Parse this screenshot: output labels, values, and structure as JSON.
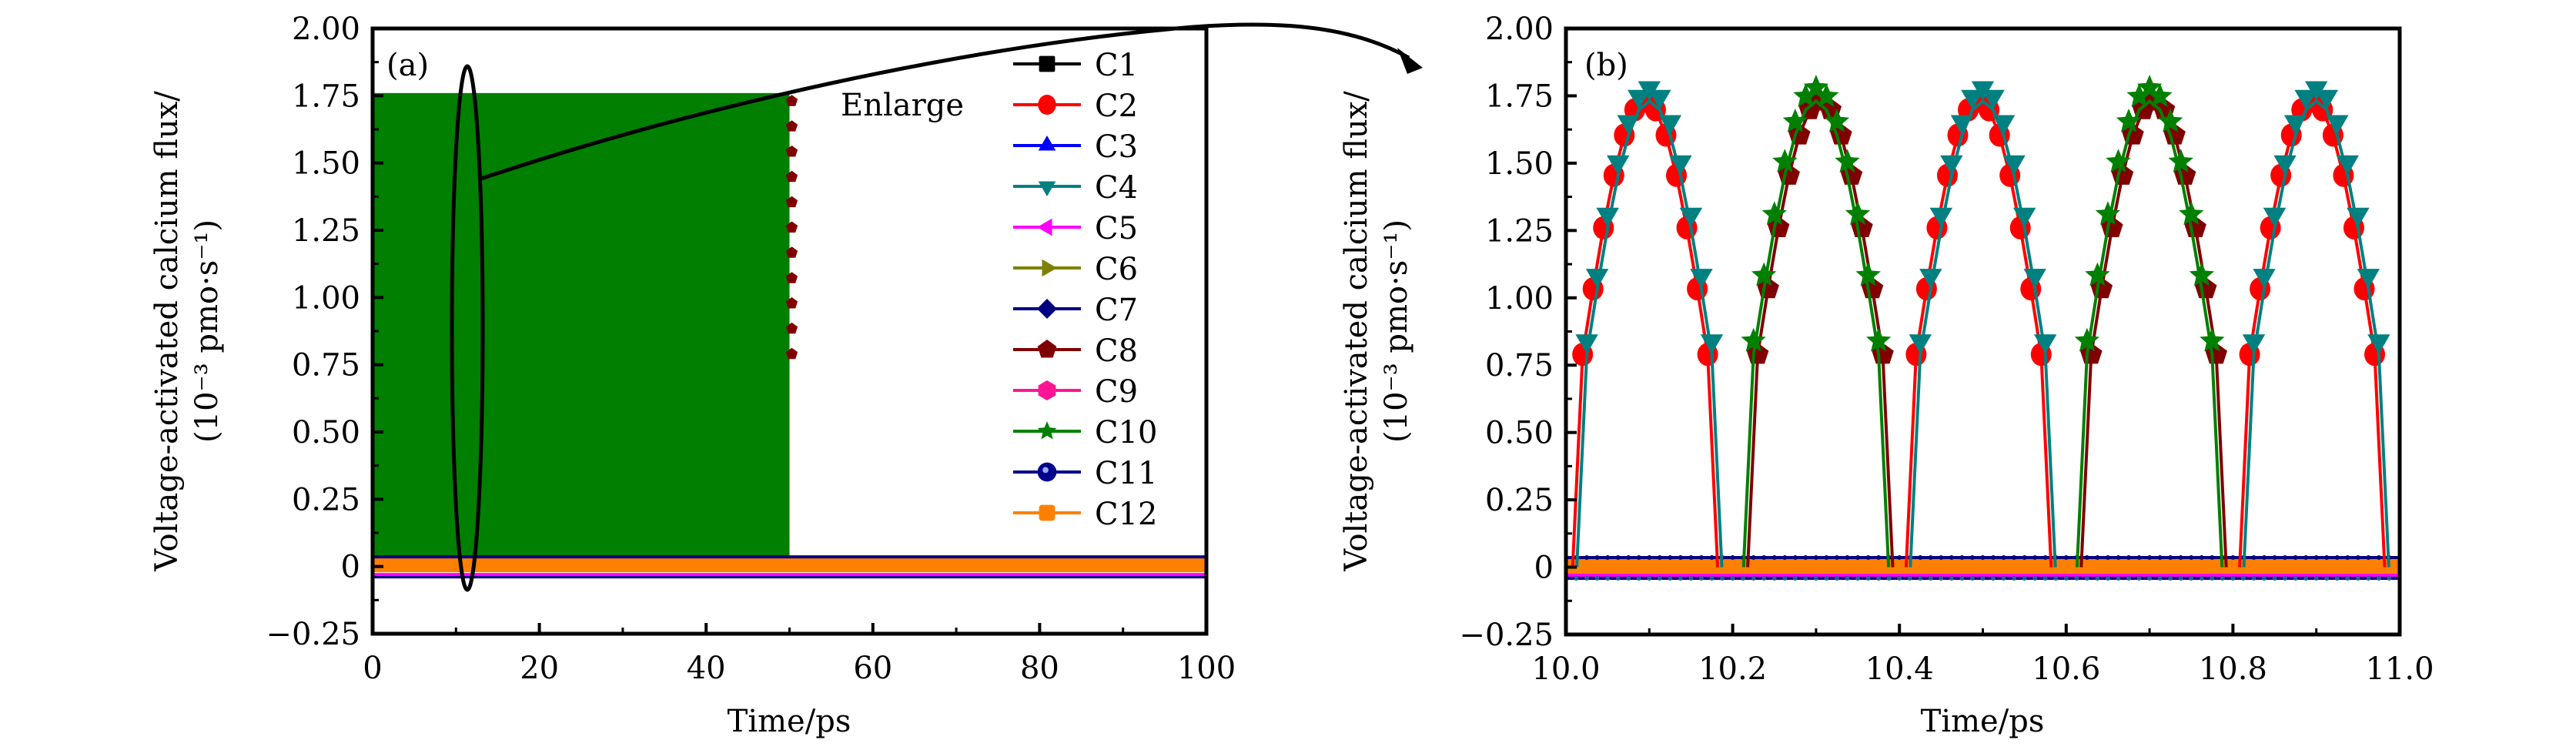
{
  "chart_data": [
    {
      "panel_label": "(a)",
      "type": "line",
      "title": "",
      "xlabel": "Time/ps",
      "ylabel_line1": "Voltage-activated calcium flux/",
      "ylabel_line2": "(10⁻³ pmo·s⁻¹)",
      "xlim": [
        0,
        100
      ],
      "ylim": [
        -0.25,
        2.0
      ],
      "xticks": [
        0,
        20,
        40,
        60,
        80,
        100
      ],
      "xtick_labels": [
        "0",
        "20",
        "40",
        "60",
        "80",
        "100"
      ],
      "yticks": [
        -0.25,
        0,
        0.25,
        0.5,
        0.75,
        1.0,
        1.25,
        1.5,
        1.75,
        2.0
      ],
      "ytick_labels": [
        "−0.25",
        "0",
        "0.25",
        "0.50",
        "0.75",
        "1.00",
        "1.25",
        "1.50",
        "1.75",
        "2.00"
      ],
      "grid": false,
      "legend_position": "top-right",
      "annotation": "Enlarge",
      "description": "Dense oscillations: C2/C4/C8/C10 oscillate between ~0 and ~1.76 from t=0 to t=50 ps (forming a filled band); all channels remain near 0 (band −0.03 to 0.03) up to t=100 ps",
      "oscillation_band": {
        "x_start": 0,
        "x_end": 50,
        "y_min": 0,
        "y_max": 1.76
      },
      "baseline_band": {
        "x_start": 0,
        "x_end": 100,
        "y_min": -0.03,
        "y_max": 0.03
      },
      "highlight_ellipse": {
        "x_center": 11,
        "y_min": -0.06,
        "y_max": 1.84
      }
    },
    {
      "panel_label": "(b)",
      "type": "line",
      "title": "",
      "xlabel": "Time/ps",
      "ylabel_line1": "Voltage-activated calcium flux/",
      "ylabel_line2": "(10⁻³ pmo·s⁻¹)",
      "xlim": [
        10.0,
        11.0
      ],
      "ylim": [
        -0.25,
        2.0
      ],
      "xticks": [
        10.0,
        10.2,
        10.4,
        10.6,
        10.8,
        11.0
      ],
      "xtick_labels": [
        "10.0",
        "10.2",
        "10.4",
        "10.6",
        "10.8",
        "11.0"
      ],
      "yticks": [
        -0.25,
        0,
        0.25,
        0.5,
        0.75,
        1.0,
        1.25,
        1.5,
        1.75,
        2.0
      ],
      "ytick_labels": [
        "−0.25",
        "0",
        "0.25",
        "0.50",
        "0.75",
        "1.00",
        "1.25",
        "1.50",
        "1.75",
        "2.00"
      ],
      "grid": false,
      "peak_max": 1.73,
      "peak_threshold": 0.79,
      "half_width": 0.075,
      "series_peaks": [
        {
          "name": "C2",
          "peaks": [
            10.1,
            10.5,
            10.9
          ],
          "offset": -0.005
        },
        {
          "name": "C4",
          "peaks": [
            10.1,
            10.5,
            10.9
          ],
          "offset": 0.0
        },
        {
          "name": "C8",
          "peaks": [
            10.3,
            10.7
          ],
          "offset": 0.005
        },
        {
          "name": "C10",
          "peaks": [
            10.3,
            10.7
          ],
          "offset": 0.0
        }
      ],
      "baseline_band": {
        "x_start": 10.0,
        "x_end": 11.0,
        "y_min": -0.03,
        "y_max": 0.03
      }
    }
  ],
  "legend": [
    {
      "name": "C1",
      "color": "#000000",
      "marker": "square"
    },
    {
      "name": "C2",
      "color": "#ff0000",
      "marker": "circle"
    },
    {
      "name": "C3",
      "color": "#0000ff",
      "marker": "triangle-up"
    },
    {
      "name": "C4",
      "color": "#008080",
      "marker": "triangle-down"
    },
    {
      "name": "C5",
      "color": "#ff00ff",
      "marker": "triangle-left"
    },
    {
      "name": "C6",
      "color": "#808000",
      "marker": "triangle-right"
    },
    {
      "name": "C7",
      "color": "#000080",
      "marker": "diamond"
    },
    {
      "name": "C8",
      "color": "#800000",
      "marker": "pentagon"
    },
    {
      "name": "C9",
      "color": "#ff1493",
      "marker": "hexagon"
    },
    {
      "name": "C10",
      "color": "#008000",
      "marker": "star"
    },
    {
      "name": "C11",
      "color": "#00008b",
      "marker": "sphere"
    },
    {
      "name": "C12",
      "color": "#ff8000",
      "marker": "square-rounded"
    }
  ],
  "colors": {
    "band_green": "#007f00",
    "baseline_orange": "#ff8000",
    "baseline_navy": "#000080",
    "baseline_magenta": "#ff00ff"
  }
}
